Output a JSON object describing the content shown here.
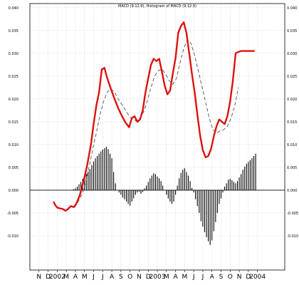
{
  "chart_data": {
    "type": "line",
    "title": "MACD (9.12.9), Histogram of MACD (9.12.9)",
    "ylim": [
      -0.0175,
      0.0409
    ],
    "yticks": [
      "0.040",
      "0.035",
      "0.030",
      "0.025",
      "0.020",
      "0.015",
      "0.010",
      "0.005",
      "0.000",
      "-0.005",
      "-0.010"
    ],
    "ytick_values": [
      0.04,
      0.035,
      0.03,
      0.025,
      0.02,
      0.015,
      0.01,
      0.005,
      0.0,
      -0.005,
      -0.01
    ],
    "xlim": [
      0,
      28
    ],
    "xticks": [
      "N",
      "D",
      "2002",
      "M",
      "A",
      "M",
      "J",
      "J",
      "A",
      "S",
      "O",
      "N",
      "D",
      "2003",
      "M",
      "A",
      "M",
      "J",
      "J",
      "A",
      "S",
      "O",
      "N",
      "D",
      "2004"
    ],
    "xtick_values": [
      1,
      2,
      3,
      4,
      5,
      6,
      7,
      8,
      9,
      10,
      11,
      12,
      13,
      14,
      15,
      16,
      17,
      18,
      19,
      20,
      21,
      22,
      23,
      24,
      25
    ],
    "grid": true,
    "zero_line": 0,
    "colors": {
      "macd": "#dd1111",
      "signal": "#555555",
      "histogram": "#000000",
      "grid": "#bbbbbb"
    },
    "series": [
      {
        "role": "macd",
        "x": [
          2.6,
          2.8,
          3.0,
          3.3,
          3.6,
          3.9,
          4.2,
          4.5,
          4.8,
          5.1,
          5.5,
          5.9,
          6.3,
          6.7,
          7.0,
          7.3,
          7.6,
          7.9,
          8.2,
          8.5,
          8.9,
          9.3,
          9.7,
          10.1,
          10.5,
          10.9,
          11.2,
          11.5,
          11.8,
          12.1,
          12.4,
          12.7,
          13.0,
          13.3,
          13.6,
          13.9,
          14.2,
          14.5,
          14.8,
          15.1,
          15.4,
          15.7,
          16.0,
          16.3,
          16.6,
          16.9,
          17.2,
          17.5,
          17.8,
          18.1,
          18.4,
          18.7,
          19.0,
          19.3,
          19.6,
          19.9,
          20.2,
          20.5,
          20.8,
          21.1,
          21.4,
          21.7,
          22.0,
          22.3,
          22.6,
          22.9,
          23.2,
          23.5,
          23.8,
          24.1,
          24.4,
          24.7
        ],
        "y": [
          -0.0025,
          -0.0033,
          -0.0038,
          -0.004,
          -0.0041,
          -0.0045,
          -0.0041,
          -0.0035,
          -0.0037,
          -0.003,
          -0.001,
          0.002,
          0.0055,
          0.01,
          0.0145,
          0.0185,
          0.0215,
          0.0265,
          0.0268,
          0.0245,
          0.0222,
          0.02,
          0.018,
          0.0163,
          0.0148,
          0.0138,
          0.0158,
          0.0162,
          0.015,
          0.0155,
          0.0175,
          0.0215,
          0.0245,
          0.0275,
          0.0288,
          0.0283,
          0.0288,
          0.026,
          0.023,
          0.021,
          0.0218,
          0.0255,
          0.029,
          0.0345,
          0.036,
          0.0368,
          0.0345,
          0.03,
          0.0255,
          0.0215,
          0.0165,
          0.012,
          0.0088,
          0.0072,
          0.0075,
          0.009,
          0.0118,
          0.014,
          0.0155,
          0.015,
          0.0145,
          0.0162,
          0.0195,
          0.024,
          0.03,
          0.0303,
          0.0305,
          0.0305,
          0.0305,
          0.0305,
          0.0305,
          0.0305
        ]
      },
      {
        "role": "signal",
        "x": [
          4.9,
          5.3,
          5.7,
          6.1,
          6.5,
          6.9,
          7.3,
          7.7,
          8.1,
          8.5,
          8.9,
          9.3,
          9.7,
          10.1,
          10.5,
          10.9,
          11.3,
          11.7,
          12.1,
          12.5,
          12.9,
          13.3,
          13.7,
          14.1,
          14.5,
          14.9,
          15.3,
          15.7,
          16.1,
          16.5,
          16.9,
          17.3,
          17.7,
          18.1,
          18.5,
          18.9,
          19.3,
          19.7,
          20.1,
          20.5,
          20.9,
          21.3,
          21.7,
          22.1,
          22.5,
          22.9
        ],
        "y": [
          -0.0038,
          -0.0025,
          -0.001,
          0.0015,
          0.005,
          0.009,
          0.0125,
          0.0165,
          0.0195,
          0.0215,
          0.0222,
          0.0215,
          0.02,
          0.0188,
          0.0175,
          0.0163,
          0.0155,
          0.0152,
          0.0158,
          0.0172,
          0.0195,
          0.0225,
          0.025,
          0.0262,
          0.0265,
          0.0255,
          0.024,
          0.0232,
          0.0245,
          0.028,
          0.031,
          0.033,
          0.0322,
          0.0295,
          0.0262,
          0.0228,
          0.0193,
          0.0158,
          0.0133,
          0.0125,
          0.013,
          0.0133,
          0.014,
          0.0158,
          0.0185,
          0.0225
        ]
      }
    ],
    "histogram": {
      "x": [
        4.8,
        5.0,
        5.2,
        5.4,
        5.6,
        5.8,
        6.0,
        6.2,
        6.4,
        6.6,
        6.8,
        7.0,
        7.2,
        7.4,
        7.6,
        7.8,
        8.0,
        8.2,
        8.4,
        8.6,
        8.8,
        9.0,
        9.2,
        9.4,
        9.6,
        9.8,
        10.0,
        10.2,
        10.4,
        10.6,
        10.8,
        11.0,
        11.2,
        11.4,
        11.6,
        11.8,
        12.0,
        12.2,
        12.4,
        12.6,
        12.8,
        13.0,
        13.2,
        13.4,
        13.6,
        13.8,
        14.0,
        14.2,
        14.4,
        14.6,
        14.8,
        15.0,
        15.2,
        15.4,
        15.6,
        15.8,
        16.0,
        16.2,
        16.4,
        16.6,
        16.8,
        17.0,
        17.2,
        17.4,
        17.6,
        17.8,
        18.0,
        18.2,
        18.4,
        18.6,
        18.8,
        19.0,
        19.2,
        19.4,
        19.6,
        19.8,
        20.0,
        20.2,
        20.4,
        20.6,
        20.8,
        21.0,
        21.2,
        21.4,
        21.6,
        21.8,
        22.0,
        22.2,
        22.4,
        22.6,
        22.8,
        23.0,
        23.2,
        23.4,
        23.6,
        23.8,
        24.0,
        24.2,
        24.4,
        24.6,
        24.8
      ],
      "y": [
        0.0002,
        0.0004,
        0.0008,
        0.0013,
        0.0018,
        0.0025,
        0.003,
        0.0036,
        0.0041,
        0.0046,
        0.0055,
        0.0063,
        0.007,
        0.0075,
        0.008,
        0.0085,
        0.0089,
        0.0092,
        0.0095,
        0.009,
        0.008,
        0.007,
        0.004,
        0.0015,
        0.0,
        -0.0005,
        -0.001,
        -0.0016,
        -0.002,
        -0.0025,
        -0.003,
        -0.0034,
        -0.0025,
        -0.0018,
        -0.001,
        -0.0005,
        -0.0003,
        -0.0008,
        -0.0004,
        0.0004,
        0.001,
        0.0018,
        0.0026,
        0.0032,
        0.0037,
        0.0035,
        0.003,
        0.0026,
        0.002,
        0.001,
        0.0,
        -0.001,
        -0.0018,
        -0.0025,
        -0.003,
        -0.0025,
        -0.001,
        0.001,
        0.0026,
        0.0038,
        0.0045,
        0.0048,
        0.004,
        0.0032,
        0.002,
        0.0005,
        -0.0005,
        -0.002,
        -0.0035,
        -0.005,
        -0.0068,
        -0.008,
        -0.0092,
        -0.0103,
        -0.0112,
        -0.012,
        -0.011,
        -0.009,
        -0.007,
        -0.005,
        -0.003,
        -0.0018,
        -0.0005,
        0.0008,
        0.0015,
        0.0023,
        0.0025,
        0.0022,
        0.0018,
        0.0015,
        0.002,
        0.0028,
        0.0035,
        0.0045,
        0.0052,
        0.0058,
        0.0062,
        0.0066,
        0.007,
        0.0075,
        0.008
      ]
    }
  }
}
